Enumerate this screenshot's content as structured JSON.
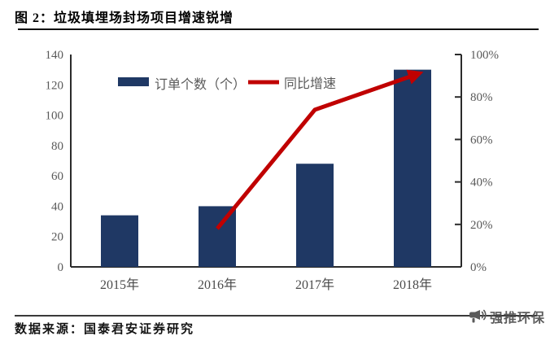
{
  "header": {
    "title": "图 2：垃圾填埋场封场项目增速锐增"
  },
  "footer": {
    "source": "数据来源：国泰君安证券研究",
    "brand": "强推环保",
    "brand_icon": "megaphone-icon"
  },
  "colors": {
    "bar": "#1f3864",
    "line": "#c00000",
    "axis": "#2b2b2b",
    "tick_label": "#595959",
    "category_label": "#4a4a4a",
    "legend_label": "#595959",
    "logo_gray": "#4a4a4a"
  },
  "chart_data": {
    "type": "bar",
    "subtype": "bar+line-dual-axis",
    "title": "图 2：垃圾填埋场封场项目增速锐增",
    "categories": [
      "2015年",
      "2016年",
      "2017年",
      "2018年"
    ],
    "series": [
      {
        "name": "订单个数（个）",
        "type": "bar",
        "axis": "left",
        "color": "#1f3864",
        "values": [
          34,
          40,
          68,
          130
        ]
      },
      {
        "name": "同比增速",
        "type": "line",
        "axis": "right",
        "color": "#c00000",
        "unit": "%",
        "values": [
          null,
          18,
          74,
          90
        ]
      }
    ],
    "left_axis": {
      "min": 0,
      "max": 140,
      "step": 20,
      "tick_labels": [
        "0",
        "20",
        "40",
        "60",
        "80",
        "100",
        "120",
        "140"
      ]
    },
    "right_axis": {
      "min": 0,
      "max": 100,
      "step": 20,
      "tick_labels": [
        "0%",
        "20%",
        "40%",
        "60%",
        "80%",
        "100%"
      ]
    },
    "legend": {
      "position": "inside-top-left",
      "entries": [
        "订单个数（个）",
        "同比增速"
      ]
    },
    "grid": false,
    "xlabel": "",
    "ylabel_left": "",
    "ylabel_right": ""
  }
}
